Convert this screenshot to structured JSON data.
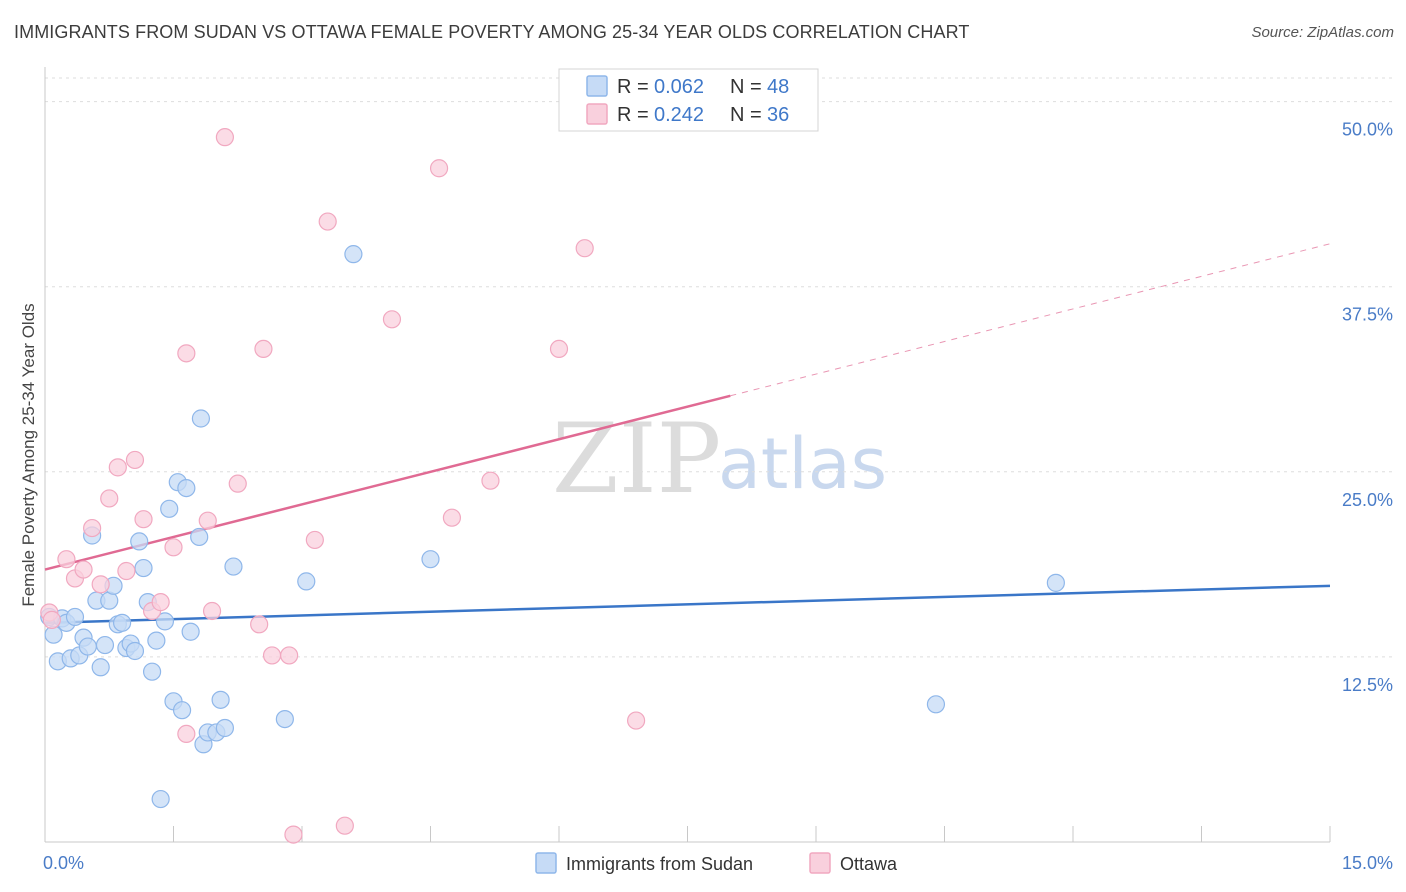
{
  "header": {
    "title": "IMMIGRANTS FROM SUDAN VS OTTAWA FEMALE POVERTY AMONG 25-34 YEAR OLDS CORRELATION CHART",
    "source": "Source: ZipAtlas.com"
  },
  "watermark": {
    "zip": "ZIP",
    "atlas": "atlas"
  },
  "chart_data": {
    "type": "scatter",
    "xlabel": "",
    "ylabel": "Female Poverty Among 25-34 Year Olds",
    "xlim": [
      0,
      15
    ],
    "ylim": [
      0,
      52
    ],
    "y_ticks": [
      {
        "value": 12.5,
        "label": "12.5%"
      },
      {
        "value": 25.0,
        "label": "25.0%"
      },
      {
        "value": 37.5,
        "label": "37.5%"
      },
      {
        "value": 50.0,
        "label": "50.0%"
      }
    ],
    "x_tick_labels": [
      {
        "value": 0,
        "label": "0.0%"
      },
      {
        "value": 15,
        "label": "15.0%"
      }
    ],
    "x_minor_ticks": [
      0,
      1.5,
      3,
      4.5,
      6,
      7.5,
      9,
      10.5,
      12,
      13.5,
      15
    ],
    "legend": {
      "entries": [
        {
          "r_label": "R = ",
          "r_value": "0.062",
          "n_label": "N = ",
          "n_value": "48"
        },
        {
          "r_label": "R = ",
          "r_value": "0.242",
          "n_label": "N = ",
          "n_value": "36"
        }
      ]
    },
    "series": [
      {
        "name": "Immigrants from Sudan",
        "color": "#8fb7ea",
        "fill": "#c6dbf6",
        "line_color": "#3a76c8",
        "trend": {
          "x0": 0,
          "y0": 14.8,
          "x1": 15,
          "y1": 17.3,
          "solid_until": 15
        },
        "points": [
          [
            0.05,
            15.2
          ],
          [
            0.1,
            14.0
          ],
          [
            0.15,
            12.2
          ],
          [
            0.2,
            15.1
          ],
          [
            0.25,
            14.8
          ],
          [
            0.3,
            12.4
          ],
          [
            0.35,
            15.2
          ],
          [
            0.4,
            12.6
          ],
          [
            0.45,
            13.8
          ],
          [
            0.5,
            13.2
          ],
          [
            0.55,
            20.7
          ],
          [
            0.6,
            16.3
          ],
          [
            0.65,
            11.8
          ],
          [
            0.7,
            13.3
          ],
          [
            0.75,
            16.3
          ],
          [
            0.8,
            17.3
          ],
          [
            0.85,
            14.7
          ],
          [
            0.9,
            14.8
          ],
          [
            0.95,
            13.1
          ],
          [
            1.0,
            13.4
          ],
          [
            1.05,
            12.9
          ],
          [
            1.1,
            20.3
          ],
          [
            1.15,
            18.5
          ],
          [
            1.2,
            16.2
          ],
          [
            1.25,
            11.5
          ],
          [
            1.3,
            13.6
          ],
          [
            1.35,
            2.9
          ],
          [
            1.4,
            14.9
          ],
          [
            1.45,
            22.5
          ],
          [
            1.5,
            9.5
          ],
          [
            1.55,
            24.3
          ],
          [
            1.6,
            8.9
          ],
          [
            1.65,
            23.9
          ],
          [
            1.7,
            14.2
          ],
          [
            1.8,
            20.6
          ],
          [
            1.82,
            28.6
          ],
          [
            1.85,
            6.6
          ],
          [
            1.9,
            7.4
          ],
          [
            2.0,
            7.4
          ],
          [
            2.05,
            9.6
          ],
          [
            2.1,
            7.7
          ],
          [
            2.2,
            18.6
          ],
          [
            2.8,
            8.3
          ],
          [
            3.05,
            17.6
          ],
          [
            3.6,
            39.7
          ],
          [
            4.5,
            19.1
          ],
          [
            10.4,
            9.3
          ],
          [
            11.8,
            17.5
          ]
        ]
      },
      {
        "name": "Ottawa",
        "color": "#f1a8c0",
        "fill": "#f9d0dd",
        "line_color": "#e06a93",
        "trend": {
          "x0": 0,
          "y0": 18.4,
          "x1": 15,
          "y1": 40.4,
          "solid_until": 8.0
        },
        "points": [
          [
            0.05,
            15.5
          ],
          [
            0.25,
            19.1
          ],
          [
            0.35,
            17.8
          ],
          [
            0.45,
            18.4
          ],
          [
            0.55,
            21.2
          ],
          [
            0.65,
            17.4
          ],
          [
            0.75,
            23.2
          ],
          [
            0.85,
            25.3
          ],
          [
            0.95,
            18.3
          ],
          [
            1.05,
            25.8
          ],
          [
            1.15,
            21.8
          ],
          [
            1.25,
            15.6
          ],
          [
            1.35,
            16.2
          ],
          [
            1.5,
            19.9
          ],
          [
            1.65,
            7.3
          ],
          [
            1.65,
            33.0
          ],
          [
            1.9,
            21.7
          ],
          [
            1.95,
            15.6
          ],
          [
            2.1,
            47.6
          ],
          [
            2.25,
            24.2
          ],
          [
            2.5,
            14.7
          ],
          [
            2.55,
            33.3
          ],
          [
            2.65,
            12.6
          ],
          [
            2.85,
            12.6
          ],
          [
            2.9,
            0.5
          ],
          [
            3.15,
            20.4
          ],
          [
            3.3,
            41.9
          ],
          [
            3.5,
            1.1
          ],
          [
            4.05,
            35.3
          ],
          [
            4.6,
            45.5
          ],
          [
            4.75,
            21.9
          ],
          [
            5.2,
            24.4
          ],
          [
            6.0,
            33.3
          ],
          [
            6.3,
            40.1
          ],
          [
            6.9,
            8.2
          ],
          [
            0.08,
            15.0
          ]
        ]
      }
    ]
  }
}
